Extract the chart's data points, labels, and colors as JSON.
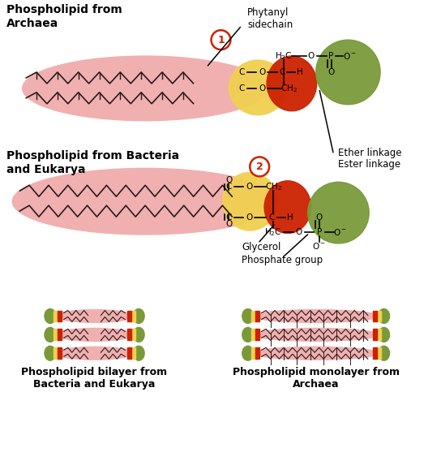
{
  "bg_color": "#ffffff",
  "pink_light": "#f5c0c0",
  "pink_medium": "#f0b0b0",
  "red_color": "#cc2200",
  "yellow_color": "#f0d050",
  "green_color": "#7a9a3a",
  "figw": 5.44,
  "figh": 5.68,
  "dpi": 100,
  "archaea_label": "Phospholipid from\nArchaea",
  "bacteria_label": "Phospholipid from Bacteria\nand Eukarya",
  "bilayer_label": "Phospholipid bilayer from\nBacteria and Eukarya",
  "monolayer_label": "Phospholipid monolayer from\nArchaea",
  "phytanyl_label": "Phytanyl\nsidechain",
  "ether_label": "Ether linkage",
  "ester_label": "Ester linkage",
  "glycerol_label": "Glycerol",
  "phosphate_label": "Phosphate group"
}
